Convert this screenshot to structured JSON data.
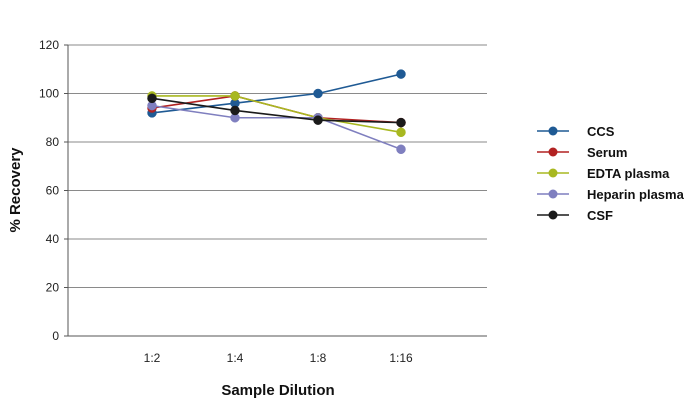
{
  "chart_data": {
    "type": "line",
    "title": "",
    "xlabel": "Sample Dilution",
    "ylabel": "% Recovery",
    "categories": [
      "1:2",
      "1:4",
      "1:8",
      "1:16"
    ],
    "ylim": [
      0,
      120
    ],
    "yticks": [
      0,
      20,
      40,
      60,
      80,
      100,
      120
    ],
    "grid": true,
    "legend_position": "right",
    "series": [
      {
        "name": "CCS",
        "color": "#1f5a94",
        "values": [
          92,
          96,
          100,
          108
        ]
      },
      {
        "name": "Serum",
        "color": "#b22222",
        "values": [
          94,
          99,
          90,
          88
        ]
      },
      {
        "name": "EDTA plasma",
        "color": "#a8b820",
        "values": [
          99,
          99,
          90,
          84
        ]
      },
      {
        "name": "Heparin plasma",
        "color": "#7f7fbf",
        "values": [
          95,
          90,
          90,
          77
        ]
      },
      {
        "name": "CSF",
        "color": "#1a1a1a",
        "values": [
          98,
          93,
          89,
          88
        ]
      }
    ]
  }
}
